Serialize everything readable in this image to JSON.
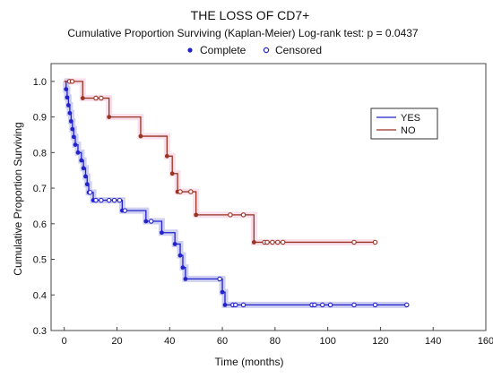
{
  "chart_data": {
    "type": "line",
    "subtype": "kaplan-meier step",
    "title": "THE LOSS OF CD7+",
    "subtitle": "Cumulative Proportion Surviving (Kaplan-Meier)   Log-rank test: p = 0.0437",
    "marker_legend": {
      "complete": "Complete",
      "censored": "Censored"
    },
    "xlabel": "Time (months)",
    "ylabel": "Cumulative Proportion Surviving",
    "xlim": [
      -5,
      160
    ],
    "ylim": [
      0.3,
      1.05
    ],
    "x_ticks": [
      0,
      20,
      40,
      60,
      80,
      100,
      120,
      140,
      160
    ],
    "y_ticks": [
      0.3,
      0.4,
      0.5,
      0.6,
      0.7,
      0.8,
      0.9,
      1.0
    ],
    "x_tick_labels": [
      "0",
      "20",
      "40",
      "60",
      "80",
      "100",
      "120",
      "140",
      "160"
    ],
    "y_tick_labels": [
      "0.3",
      "0.4",
      "0.5",
      "0.6",
      "0.7",
      "0.8",
      "0.9",
      "1.0"
    ],
    "legend_position": "upper-right",
    "series": [
      {
        "name": "YES",
        "color": "#2222cc",
        "band_color": "#a8a8e8",
        "steps": [
          [
            0,
            1.0
          ],
          [
            0.7,
            0.978
          ],
          [
            1.1,
            0.955
          ],
          [
            1.6,
            0.933
          ],
          [
            2.1,
            0.911
          ],
          [
            2.6,
            0.888
          ],
          [
            3.1,
            0.866
          ],
          [
            3.6,
            0.844
          ],
          [
            4.2,
            0.822
          ],
          [
            5.2,
            0.8
          ],
          [
            6.5,
            0.778
          ],
          [
            7.3,
            0.756
          ],
          [
            8.1,
            0.733
          ],
          [
            8.7,
            0.711
          ],
          [
            9.3,
            0.688
          ],
          [
            11,
            0.666
          ],
          [
            22,
            0.637
          ],
          [
            31,
            0.607
          ],
          [
            37,
            0.575
          ],
          [
            42,
            0.543
          ],
          [
            44,
            0.511
          ],
          [
            45,
            0.477
          ],
          [
            46,
            0.445
          ],
          [
            60,
            0.408
          ],
          [
            61,
            0.372
          ]
        ],
        "events": [
          [
            0.7,
            0.978
          ],
          [
            1.1,
            0.955
          ],
          [
            1.6,
            0.933
          ],
          [
            2.1,
            0.911
          ],
          [
            2.6,
            0.888
          ],
          [
            3.1,
            0.866
          ],
          [
            3.6,
            0.844
          ],
          [
            4.2,
            0.822
          ],
          [
            5.2,
            0.8
          ],
          [
            6.5,
            0.778
          ],
          [
            7.3,
            0.756
          ],
          [
            8.1,
            0.733
          ],
          [
            8.7,
            0.711
          ],
          [
            9.3,
            0.688
          ],
          [
            11,
            0.666
          ],
          [
            22,
            0.637
          ],
          [
            31,
            0.607
          ],
          [
            37,
            0.575
          ],
          [
            42,
            0.543
          ],
          [
            44,
            0.511
          ],
          [
            45,
            0.477
          ],
          [
            46,
            0.445
          ],
          [
            60,
            0.408
          ],
          [
            61,
            0.372
          ]
        ],
        "censored": [
          [
            9.8,
            0.688
          ],
          [
            12,
            0.666
          ],
          [
            14,
            0.666
          ],
          [
            17,
            0.666
          ],
          [
            19,
            0.666
          ],
          [
            21,
            0.666
          ],
          [
            23,
            0.637
          ],
          [
            33,
            0.607
          ],
          [
            59,
            0.445
          ],
          [
            64,
            0.372
          ],
          [
            65,
            0.372
          ],
          [
            68,
            0.372
          ],
          [
            94,
            0.372
          ],
          [
            95,
            0.372
          ],
          [
            98,
            0.372
          ],
          [
            101,
            0.372
          ],
          [
            110,
            0.372
          ],
          [
            118,
            0.372
          ],
          [
            130,
            0.372
          ]
        ],
        "end": 130
      },
      {
        "name": "NO",
        "color": "#993322",
        "band_color": "#f4c6dd",
        "steps": [
          [
            0,
            1.0
          ],
          [
            7,
            0.953
          ],
          [
            17,
            0.9
          ],
          [
            29,
            0.846
          ],
          [
            39,
            0.79
          ],
          [
            41,
            0.741
          ],
          [
            43,
            0.69
          ],
          [
            50,
            0.625
          ],
          [
            72,
            0.548
          ]
        ],
        "events": [
          [
            7,
            0.953
          ],
          [
            17,
            0.9
          ],
          [
            29,
            0.846
          ],
          [
            39,
            0.79
          ],
          [
            41,
            0.741
          ],
          [
            43,
            0.69
          ],
          [
            50,
            0.625
          ],
          [
            72,
            0.548
          ]
        ],
        "censored": [
          [
            2,
            1.0
          ],
          [
            3,
            1.0
          ],
          [
            12,
            0.953
          ],
          [
            14,
            0.953
          ],
          [
            44,
            0.69
          ],
          [
            48,
            0.69
          ],
          [
            63,
            0.625
          ],
          [
            68,
            0.625
          ],
          [
            76,
            0.548
          ],
          [
            77,
            0.548
          ],
          [
            79,
            0.548
          ],
          [
            81,
            0.548
          ],
          [
            83,
            0.548
          ],
          [
            110,
            0.548
          ],
          [
            118,
            0.548
          ]
        ],
        "end": 118
      }
    ]
  }
}
